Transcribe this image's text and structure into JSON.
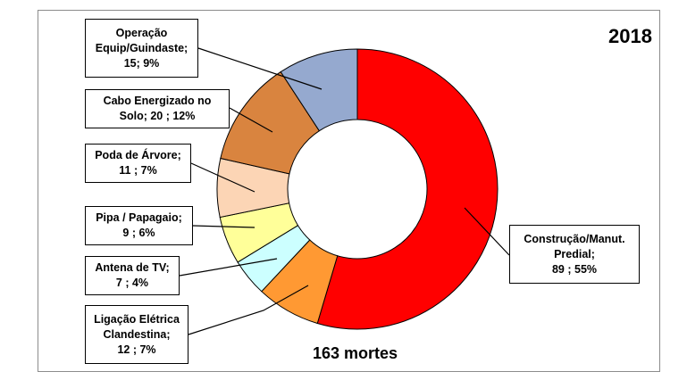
{
  "chart_data": {
    "type": "pie",
    "variant": "donut",
    "title": "2018",
    "center_note": "163 mortes",
    "slices": [
      {
        "label_lines": [
          "Construção/Manut.",
          "Predial;",
          "89 ; 55%"
        ],
        "value": 89,
        "percent": 55,
        "color": "#ff0000"
      },
      {
        "label_lines": [
          "Ligação Elétrica",
          "Clandestina;",
          "12 ; 7%"
        ],
        "value": 12,
        "percent": 7,
        "color": "#ff9933"
      },
      {
        "label_lines": [
          "Antena de TV;",
          "7 ; 4%"
        ],
        "value": 7,
        "percent": 4,
        "color": "#ccffff"
      },
      {
        "label_lines": [
          "Pipa / Papagaio;",
          "9 ; 6%"
        ],
        "value": 9,
        "percent": 6,
        "color": "#ffff99"
      },
      {
        "label_lines": [
          "Poda de Árvore;",
          "11 ; 7%"
        ],
        "value": 11,
        "percent": 7,
        "color": "#fcd5b5"
      },
      {
        "label_lines": [
          "Cabo Energizado no",
          "Solo;  20 ; 12%"
        ],
        "value": 20,
        "percent": 12,
        "color": "#d9843f"
      },
      {
        "label_lines": [
          "Operação",
          "Equip/Guindaste;",
          "15; 9%"
        ],
        "value": 15,
        "percent": 9,
        "color": "#95a9cf"
      }
    ]
  }
}
